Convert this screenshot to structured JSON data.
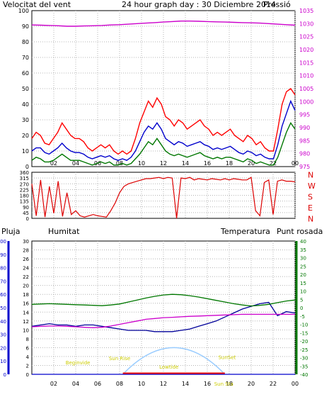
{
  "header": {
    "wind_label": "Velocitat del vent",
    "date_label": "24 hour graph day : 30 Diciembre 2014",
    "pressure_label": "Pressió"
  },
  "lower_header": {
    "rain_label": "Pluja",
    "humidity_label": "Humitat",
    "temperature_label": "Temperatura",
    "dewpoint_label": "Punt rosada"
  },
  "sun_labels": {
    "begin": "Beginvide",
    "sunrise": "Sun Rise",
    "lowtide": "Lowtide",
    "sunset": "SunSet",
    "sunset_bottom": "Sun Sta"
  },
  "colors": {
    "gust": "#ff0000",
    "wind_avg": "#0000cc",
    "wind_min": "#007700",
    "pressure": "#cc00cc",
    "direction": "#dd0000",
    "humidity": "#000099",
    "temperature": "#007700",
    "dewpoint": "#cc00cc",
    "rain_axis": "#0000cc",
    "sun_arc": "#99ccff",
    "sun_label": "#cccc00"
  },
  "chart_data": [
    {
      "type": "line",
      "x_ticks": [
        "02",
        "04",
        "06",
        "08",
        "10",
        "12",
        "14",
        "16",
        "18",
        "20",
        "22",
        "00"
      ],
      "left_ticks": [
        0,
        10,
        20,
        30,
        40,
        50,
        60,
        70,
        80,
        90,
        100
      ],
      "right_ticks": [
        975,
        980,
        985,
        990,
        995,
        1000,
        1005,
        1010,
        1015,
        1020,
        1025,
        1030,
        1035
      ],
      "ylim_left": [
        0,
        100
      ],
      "ylim_right": [
        975,
        1035
      ],
      "series": [
        {
          "role": "gust",
          "values": [
            18,
            22,
            20,
            15,
            14,
            18,
            22,
            28,
            24,
            20,
            18,
            18,
            16,
            12,
            10,
            12,
            14,
            12,
            14,
            10,
            8,
            10,
            8,
            10,
            18,
            28,
            35,
            42,
            38,
            44,
            40,
            32,
            30,
            26,
            30,
            28,
            24,
            26,
            28,
            30,
            26,
            24,
            20,
            22,
            20,
            22,
            24,
            20,
            18,
            16,
            20,
            18,
            14,
            16,
            12,
            10,
            10,
            24,
            40,
            48,
            50,
            46
          ]
        },
        {
          "role": "average",
          "values": [
            10,
            12,
            12,
            9,
            8,
            10,
            12,
            15,
            12,
            10,
            9,
            9,
            8,
            6,
            5,
            6,
            7,
            6,
            7,
            5,
            4,
            5,
            4,
            6,
            10,
            16,
            22,
            26,
            24,
            28,
            24,
            18,
            16,
            14,
            16,
            15,
            13,
            14,
            15,
            16,
            14,
            13,
            11,
            12,
            11,
            12,
            13,
            11,
            9,
            8,
            10,
            9,
            7,
            8,
            6,
            5,
            5,
            14,
            26,
            34,
            42,
            36
          ]
        },
        {
          "role": "minimum",
          "values": [
            4,
            6,
            5,
            3,
            3,
            4,
            6,
            8,
            6,
            4,
            4,
            4,
            3,
            2,
            1,
            2,
            3,
            2,
            3,
            1,
            1,
            2,
            1,
            2,
            5,
            8,
            12,
            16,
            14,
            18,
            14,
            10,
            8,
            7,
            8,
            7,
            6,
            7,
            8,
            9,
            7,
            6,
            5,
            6,
            5,
            6,
            6,
            5,
            4,
            3,
            5,
            4,
            2,
            3,
            2,
            1,
            1,
            6,
            14,
            22,
            28,
            24
          ]
        },
        {
          "role": "pressure",
          "axis": "right",
          "values": [
            1029.5,
            1029.4,
            1029.3,
            1029.2,
            1029.0,
            1029.0,
            1029.1,
            1029.2,
            1029.3,
            1029.5,
            1029.6,
            1029.8,
            1030.0,
            1030.2,
            1030.4,
            1030.6,
            1030.8,
            1031.0,
            1031.0,
            1030.9,
            1030.8,
            1030.7,
            1030.6,
            1030.5,
            1030.4,
            1030.3,
            1030.2,
            1030.0,
            1029.8,
            1029.6,
            1029.4
          ]
        }
      ]
    },
    {
      "type": "scatter",
      "x_ticks": [
        "02",
        "04",
        "06",
        "08",
        "10",
        "12",
        "14",
        "16",
        "18",
        "20",
        "22",
        "00"
      ],
      "left_ticks": [
        0,
        45,
        90,
        135,
        180,
        225,
        270,
        315,
        360
      ],
      "right_labels": [
        "N",
        "W",
        "S",
        "E",
        "N"
      ],
      "ylim": [
        0,
        360
      ],
      "series": [
        {
          "role": "direction",
          "values": [
            270,
            20,
            300,
            10,
            250,
            40,
            290,
            15,
            200,
            30,
            60,
            20,
            10,
            20,
            30,
            20,
            15,
            10,
            60,
            120,
            200,
            250,
            270,
            280,
            290,
            300,
            310,
            310,
            315,
            320,
            310,
            320,
            315,
            0,
            315,
            310,
            320,
            300,
            310,
            305,
            300,
            310,
            305,
            300,
            310,
            300,
            310,
            305,
            300,
            300,
            320,
            60,
            20,
            280,
            300,
            30,
            290,
            300,
            290,
            290,
            285
          ]
        }
      ]
    },
    {
      "type": "line",
      "x_ticks": [
        "02",
        "04",
        "06",
        "08",
        "10",
        "12",
        "14",
        "16",
        "18",
        "20",
        "22",
        "00"
      ],
      "rain_ticks": [
        0,
        10,
        20,
        30,
        40,
        50,
        60,
        70,
        80,
        90,
        100
      ],
      "humidity_ticks": [
        0,
        2,
        4,
        6,
        8,
        10,
        12,
        14,
        16,
        18,
        20,
        22,
        24,
        26,
        28,
        30
      ],
      "temp_ticks": [
        -40,
        -35,
        -30,
        -25,
        -20,
        -15,
        -10,
        -5,
        0,
        5,
        10,
        15,
        20,
        25,
        30,
        35,
        40
      ],
      "ylim_humidity": [
        0,
        30
      ],
      "ylim_temperature": [
        -40,
        40
      ],
      "series": [
        {
          "role": "humidity",
          "values": [
            36,
            37,
            38,
            37,
            37,
            36,
            37,
            37,
            36,
            35,
            34,
            33,
            33,
            33,
            32,
            32,
            32,
            33,
            34,
            36,
            38,
            40,
            43,
            46,
            49,
            51,
            53,
            54,
            44,
            47,
            46
          ]
        },
        {
          "role": "temperature",
          "axis": "right",
          "values": [
            2,
            2.2,
            2.4,
            2.2,
            2,
            1.8,
            1.6,
            1.4,
            1.2,
            1.6,
            2.2,
            3.4,
            4.6,
            5.8,
            6.8,
            7.6,
            8,
            7.8,
            7.2,
            6.4,
            5.4,
            4.4,
            3.4,
            2.4,
            1.6,
            1,
            1.4,
            2,
            3,
            4,
            4.6
          ]
        },
        {
          "role": "dewpoint",
          "axis": "right",
          "values": [
            -11.5,
            -11.2,
            -11,
            -11,
            -11.2,
            -11.5,
            -11.8,
            -12,
            -11.8,
            -11,
            -10,
            -9,
            -8,
            -7,
            -6.5,
            -6,
            -5.8,
            -5.5,
            -5.2,
            -5,
            -4.8,
            -4.6,
            -4.4,
            -4.2,
            -4,
            -4,
            -4,
            -4,
            -4,
            -4,
            -4
          ]
        },
        {
          "role": "rain",
          "values": [
            0,
            0,
            0,
            0,
            0,
            0,
            0,
            0,
            0,
            0,
            0,
            0,
            0,
            0,
            0,
            0,
            0,
            0,
            0,
            0,
            0,
            0,
            0,
            0,
            0,
            0,
            0,
            0,
            0,
            0,
            0
          ]
        }
      ]
    }
  ]
}
